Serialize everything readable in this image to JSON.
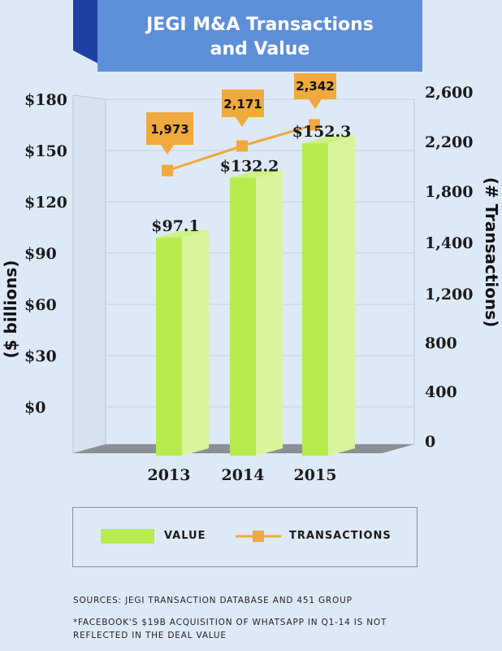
{
  "title_lines": [
    "JEGI M&A Transactions",
    "and Value"
  ],
  "colors": {
    "background": "#dee9f7",
    "banner": "#5d8fd8",
    "banner_dark": "#1f3fa6",
    "bar_front": "#b6ec4d",
    "bar_side": "#d9f59c",
    "line": "#f0a93c",
    "callout": "#f0a93c"
  },
  "chart_data": {
    "type": "bar",
    "categories": [
      "2013",
      "2014",
      "2015"
    ],
    "series": [
      {
        "values": [
          97.1,
          132.2,
          152.3
        ],
        "labels": [
          "$97.1",
          "$132.2",
          "$152.3"
        ],
        "axis": "left",
        "kind": "bar"
      },
      {
        "values": [
          1973,
          2171,
          2342
        ],
        "labels": [
          "1,973",
          "2,171",
          "2,342"
        ],
        "axis": "right",
        "kind": "line"
      }
    ],
    "ylabel": "($ billions)",
    "y2label": "(# Transactions)",
    "ylim": [
      0,
      180
    ],
    "y_ticks": [
      "$180",
      "$150",
      "$120",
      "$90",
      "$60",
      "$30",
      "$0"
    ],
    "y2_ticks": [
      "2,600",
      "2,200",
      "1,800",
      "1,400",
      "1,200",
      "800",
      "400",
      "0"
    ],
    "legend": {
      "value": "VALUE",
      "transactions": "TRANSACTIONS"
    }
  },
  "footnotes": {
    "sources": "SOURCES: JEGI TRANSACTION DATABASE AND 451 GROUP",
    "note_line1": "*FACEBOOK'S $19B ACQUISITION OF WHATSAPP IN Q1-14 IS NOT",
    "note_line2": "REFLECTED IN THE DEAL VALUE"
  }
}
